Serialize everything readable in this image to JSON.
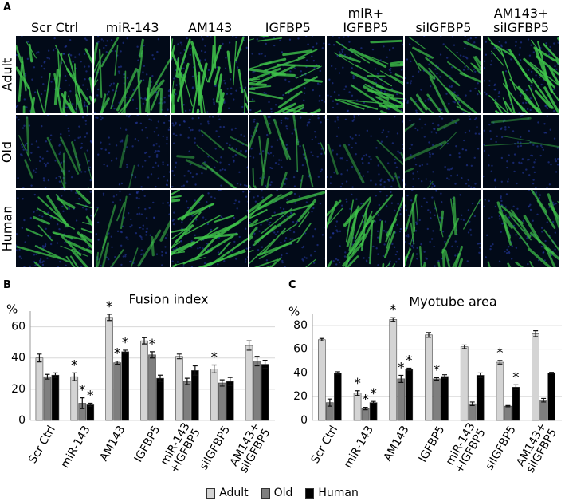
{
  "panel_labels": [
    "A",
    "B",
    "C"
  ],
  "image_grid": {
    "columns": [
      "Scr Ctrl",
      "miR-143",
      "AM143",
      "IGFBP5",
      "miR+\nIGFBP5",
      "siIGFBP5",
      "AM143+\nsiIGFBP5"
    ],
    "rows": [
      "Adult",
      "Old",
      "Human"
    ]
  },
  "chart_data": [
    {
      "type": "bar",
      "title": "Fusion index",
      "y_label": "%",
      "sig_label": "*",
      "categories": [
        "Scr Ctrl",
        "miR-143",
        "AM143",
        "IGFBP5",
        "miR-143\n+IGFBP5",
        "siIGFBP5",
        "AM143+\nsiIGFBP5"
      ],
      "ylim": [
        0,
        70
      ],
      "yticks": [
        0,
        20,
        40,
        60
      ],
      "grid": true,
      "series": [
        {
          "name": "Adult",
          "color": "#d4d4d4",
          "values": [
            40,
            28,
            66,
            51,
            41,
            33,
            48
          ],
          "errors": [
            2.5,
            2.5,
            2,
            2,
            1.5,
            2.5,
            3
          ],
          "significant": [
            false,
            true,
            true,
            false,
            false,
            true,
            false
          ]
        },
        {
          "name": "Old",
          "color": "#7f7f7f",
          "values": [
            28,
            11,
            37,
            42,
            25,
            24,
            38
          ],
          "errors": [
            1.5,
            3.5,
            1,
            2,
            2,
            2,
            3
          ],
          "significant": [
            false,
            true,
            true,
            true,
            false,
            false,
            false
          ]
        },
        {
          "name": "Human",
          "color": "#000000",
          "values": [
            29,
            10,
            44,
            27,
            32,
            25,
            36
          ],
          "errors": [
            1.5,
            1,
            1,
            2,
            3,
            2.5,
            2.5
          ],
          "significant": [
            false,
            true,
            true,
            false,
            false,
            false,
            false
          ]
        }
      ]
    },
    {
      "type": "bar",
      "title": "Myotube area",
      "y_label": "%",
      "sig_label": "*",
      "categories": [
        "Scr Ctrl",
        "miR-143",
        "AM143",
        "IGFBP5",
        "miR-143\n+IGFBP5",
        "siIGFBP5",
        "AM143+\nsiIGFBP5"
      ],
      "ylim": [
        0,
        90
      ],
      "yticks": [
        0,
        20,
        40,
        60,
        80
      ],
      "grid": true,
      "series": [
        {
          "name": "Adult",
          "color": "#d4d4d4",
          "values": [
            68,
            23,
            85,
            72,
            62,
            49,
            73
          ],
          "errors": [
            1,
            2,
            1.5,
            2,
            1.5,
            1.5,
            2.5
          ],
          "significant": [
            false,
            true,
            true,
            false,
            false,
            true,
            false
          ]
        },
        {
          "name": "Old",
          "color": "#7f7f7f",
          "values": [
            15,
            10,
            35,
            35,
            14,
            12,
            17
          ],
          "errors": [
            3,
            1,
            3,
            1,
            1.5,
            0.5,
            1.5
          ],
          "significant": [
            false,
            true,
            true,
            true,
            false,
            false,
            false
          ]
        },
        {
          "name": "Human",
          "color": "#000000",
          "values": [
            40,
            15,
            43,
            37,
            38,
            28,
            40
          ],
          "errors": [
            1,
            1,
            1,
            1.5,
            2,
            2,
            0.5
          ],
          "significant": [
            false,
            true,
            true,
            false,
            false,
            true,
            false
          ]
        }
      ]
    }
  ]
}
